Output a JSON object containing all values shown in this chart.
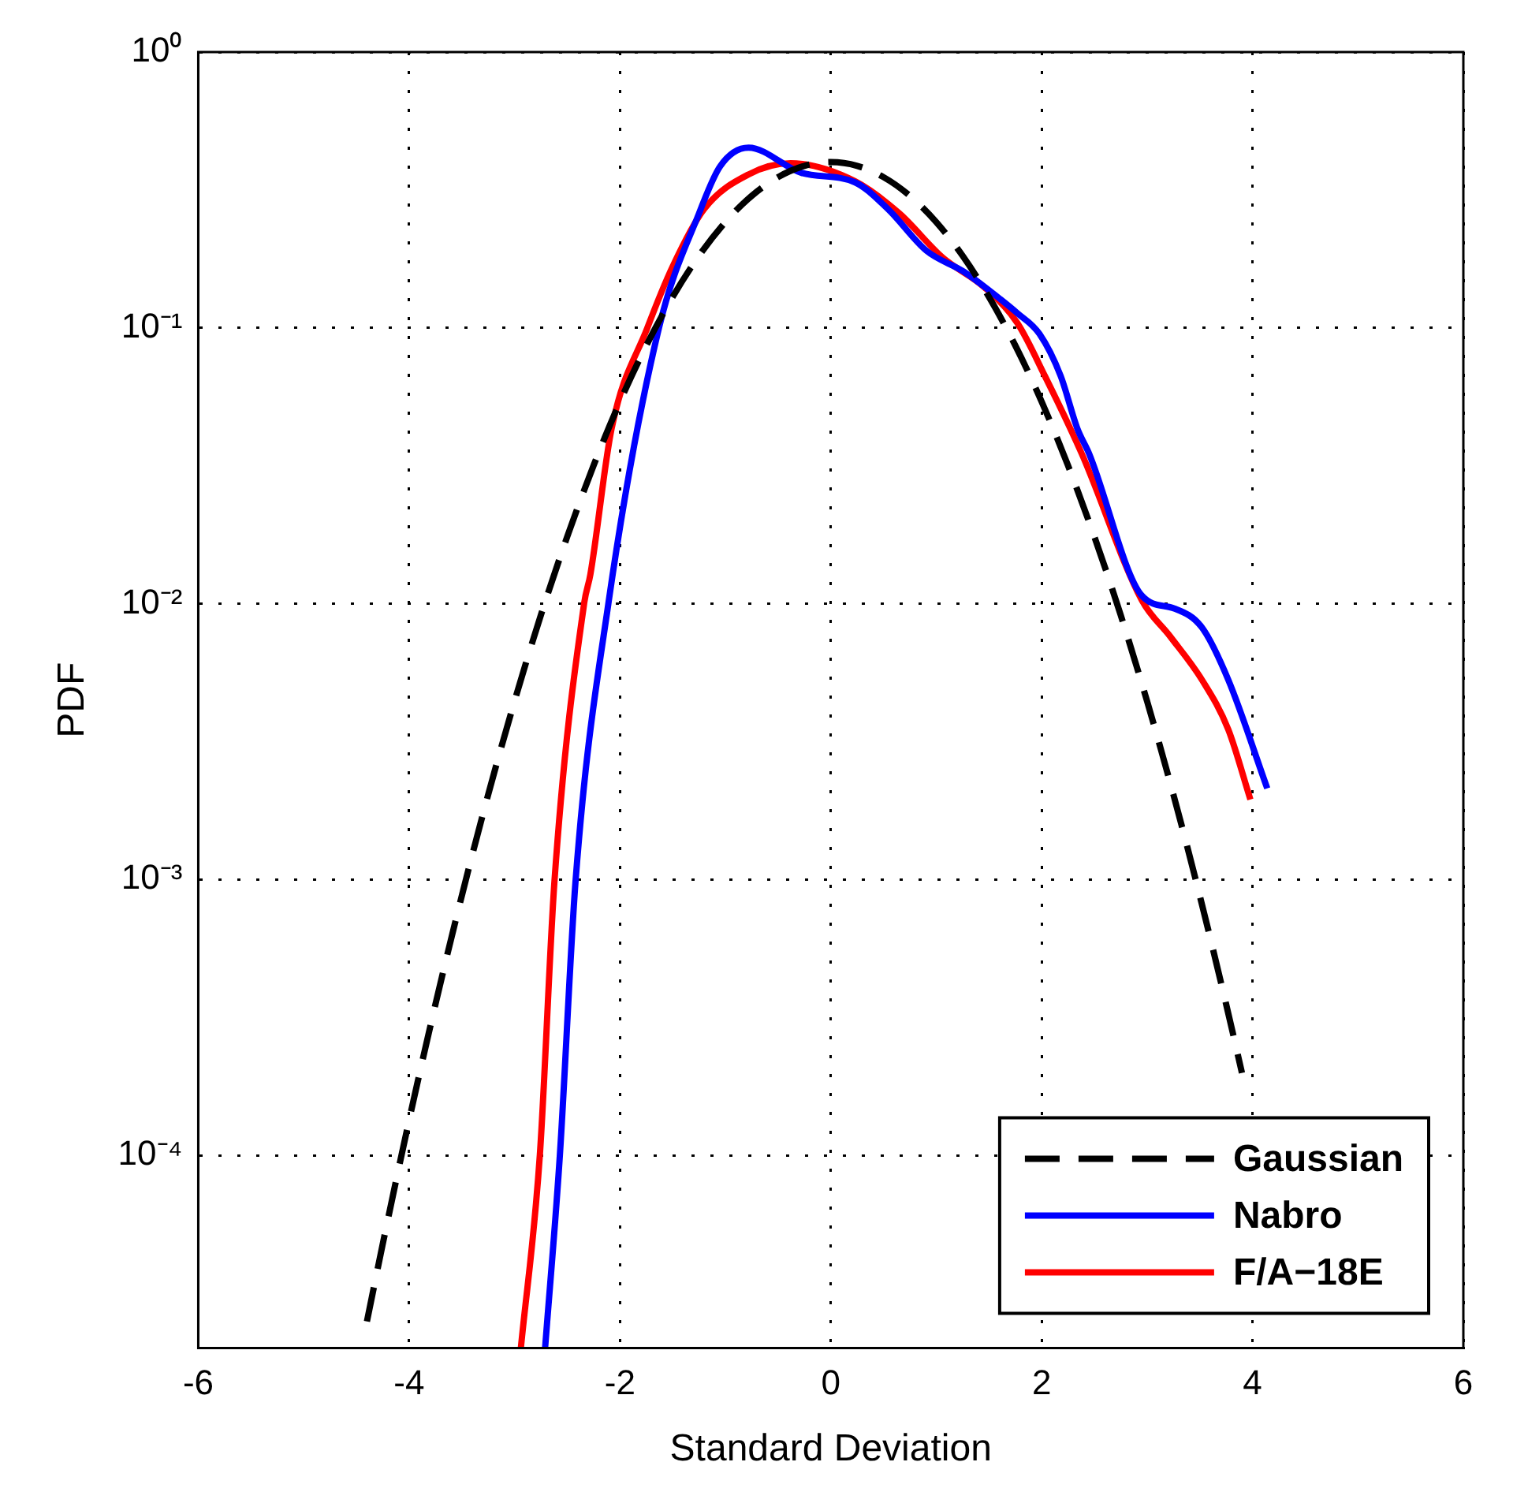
{
  "chart_data": {
    "type": "line",
    "xlabel": "Standard Deviation",
    "ylabel": "PDF",
    "xlim": [
      -6,
      6
    ],
    "xticks": [
      -6,
      -4,
      -2,
      0,
      2,
      4,
      6
    ],
    "ylim": [
      2e-05,
      1
    ],
    "yticks": [
      {
        "value": 1,
        "label": "10⁰"
      },
      {
        "value": 0.1,
        "label": "10⁻¹"
      },
      {
        "value": 0.01,
        "label": "10⁻²"
      },
      {
        "value": 0.001,
        "label": "10⁻³"
      },
      {
        "value": 0.0001,
        "label": "10⁻⁴"
      }
    ],
    "log": "y",
    "grid": true,
    "legend": "bottom right",
    "marker": "none",
    "series": [
      {
        "name": "Gaussian",
        "color": "#000000",
        "line_style": "dashed",
        "x": [
          -4.4,
          -4.25,
          -4.0,
          -3.75,
          -3.5,
          -3.25,
          -3.0,
          -2.75,
          -2.5,
          -2.25,
          -2.0,
          -1.75,
          -1.5,
          -1.25,
          -1.0,
          -0.75,
          -0.5,
          -0.25,
          0,
          0.25,
          0.5,
          0.75,
          1.0,
          1.25,
          1.5,
          1.75,
          2.0,
          2.25,
          2.5,
          2.75,
          3.0,
          3.25,
          3.5,
          3.75,
          3.9
        ],
        "values": [
          2.5e-05,
          4.77e-05,
          0.000134,
          0.000353,
          0.000873,
          0.00203,
          0.00443,
          0.00909,
          0.0175,
          0.0317,
          0.054,
          0.0863,
          0.1295,
          0.1826,
          0.242,
          0.3011,
          0.352,
          0.3867,
          0.399,
          0.3867,
          0.352,
          0.3011,
          0.242,
          0.1826,
          0.1295,
          0.0863,
          0.054,
          0.0317,
          0.0175,
          0.00909,
          0.00443,
          0.00203,
          0.000873,
          0.000353,
          0.000199
        ]
      },
      {
        "name": "Nabro",
        "color": "#0000ff",
        "line_style": "solid",
        "x": [
          -2.71,
          -2.57,
          -2.42,
          -2.11,
          -1.63,
          -1.25,
          -1.05,
          -0.78,
          -0.28,
          0.23,
          0.54,
          0.91,
          1.26,
          1.52,
          1.77,
          1.98,
          2.18,
          2.34,
          2.45,
          2.95,
          3.26,
          3.52,
          3.77,
          4.14
        ],
        "values": [
          2e-05,
          0.0001,
          0.001,
          0.01,
          0.1,
          0.26,
          0.385,
          0.45,
          0.365,
          0.337,
          0.27,
          0.19,
          0.16,
          0.135,
          0.113,
          0.095,
          0.067,
          0.043,
          0.035,
          0.0107,
          0.0096,
          0.0082,
          0.0053,
          0.00214
        ]
      },
      {
        "name": "F/A−18E",
        "color": "#ff0000",
        "line_style": "solid",
        "x": [
          -2.94,
          -2.76,
          -2.62,
          -2.34,
          -2.28,
          -2.08,
          -1.74,
          -1.5,
          -1.2,
          -0.78,
          -0.38,
          0.23,
          0.65,
          1.06,
          1.46,
          1.77,
          2.03,
          2.38,
          2.95,
          3.22,
          3.52,
          3.77,
          3.98
        ],
        "values": [
          2e-05,
          0.0001,
          0.001,
          0.01,
          0.0128,
          0.043,
          0.1,
          0.167,
          0.27,
          0.36,
          0.395,
          0.34,
          0.26,
          0.18,
          0.14,
          0.104,
          0.067,
          0.035,
          0.0103,
          0.0076,
          0.0053,
          0.0035,
          0.00195
        ]
      }
    ]
  }
}
